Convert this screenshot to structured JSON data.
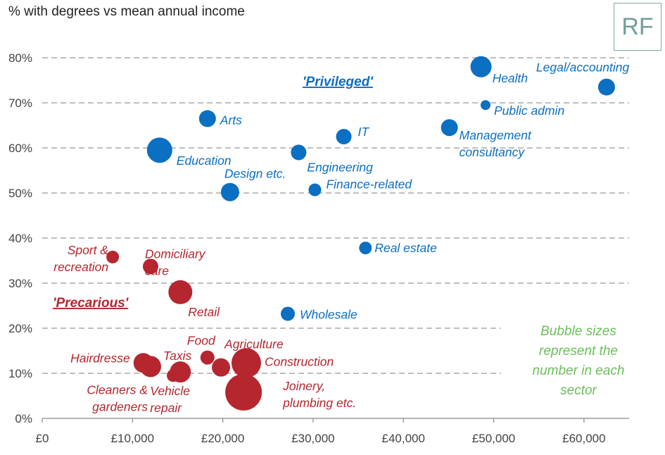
{
  "title": "% with degrees vs mean annual income",
  "logo": "RF",
  "colors": {
    "privileged": "#0b6fc2",
    "precarious": "#b5262f",
    "note": "#6cbf5a",
    "grid": "#aaaaaa"
  },
  "chart_data": {
    "type": "scatter",
    "title": "% with degrees vs mean annual income",
    "xlabel": "",
    "ylabel": "",
    "xlim": [
      0,
      65000
    ],
    "ylim": [
      0,
      80
    ],
    "x_ticks": [
      "£0",
      "£10,000",
      "£20,000",
      "£30,000",
      "£40,000",
      "£50,000",
      "£60,000"
    ],
    "y_ticks": [
      "0%",
      "10%",
      "20%",
      "30%",
      "40%",
      "50%",
      "60%",
      "70%",
      "80%"
    ],
    "grid": "horizontal dashed",
    "groups": [
      {
        "name": "'Privileged'",
        "color": "#0b6fc2"
      },
      {
        "name": "'Precarious'",
        "color": "#b5262f"
      }
    ],
    "note": [
      "Bubble sizes",
      "represent the",
      "number in each",
      "sector"
    ],
    "points": [
      {
        "label": [
          "Legal/accounting"
        ],
        "x": 62500,
        "y": 73.5,
        "r": 12,
        "group": "privileged"
      },
      {
        "label": [
          "Health"
        ],
        "x": 48600,
        "y": 78,
        "r": 15,
        "group": "privileged"
      },
      {
        "label": [
          "Public admin"
        ],
        "x": 49100,
        "y": 69.5,
        "r": 7,
        "group": "privileged"
      },
      {
        "label": [
          "Management",
          "consultancy"
        ],
        "x": 45100,
        "y": 64.5,
        "r": 12,
        "group": "privileged"
      },
      {
        "label": [
          "IT"
        ],
        "x": 33400,
        "y": 62.5,
        "r": 11,
        "group": "privileged"
      },
      {
        "label": [
          "Arts"
        ],
        "x": 18300,
        "y": 66.5,
        "r": 12,
        "group": "privileged"
      },
      {
        "label": [
          "Education"
        ],
        "x": 13000,
        "y": 59.5,
        "r": 18,
        "group": "privileged"
      },
      {
        "label": [
          "Engineering"
        ],
        "x": 28400,
        "y": 59,
        "r": 11,
        "group": "privileged"
      },
      {
        "label": [
          "Design etc."
        ],
        "x": 20800,
        "y": 50.2,
        "r": 13,
        "group": "privileged"
      },
      {
        "label": [
          "Finance-related"
        ],
        "x": 30200,
        "y": 50.7,
        "r": 9,
        "group": "privileged"
      },
      {
        "label": [
          "Real estate"
        ],
        "x": 35800,
        "y": 37.8,
        "r": 9,
        "group": "privileged"
      },
      {
        "label": [
          "Wholesale"
        ],
        "x": 27200,
        "y": 23.2,
        "r": 10,
        "group": "privileged"
      },
      {
        "label": [
          "Sport &",
          "recreation"
        ],
        "x": 7800,
        "y": 35.8,
        "r": 9,
        "group": "precarious"
      },
      {
        "label": [
          "Domiciliary",
          "care"
        ],
        "x": 12000,
        "y": 33.7,
        "r": 11,
        "group": "precarious"
      },
      {
        "label": [
          "Retail"
        ],
        "x": 15300,
        "y": 28,
        "r": 17,
        "group": "precarious"
      },
      {
        "label": [
          "Hairdresse"
        ],
        "x": 11200,
        "y": 12.3,
        "r": 14,
        "group": "precarious"
      },
      {
        "label": [
          "Cleaners &",
          "gardeners"
        ],
        "x": 12000,
        "y": 11.5,
        "r": 15,
        "group": "precarious"
      },
      {
        "label": [
          "Taxis"
        ],
        "x": 14500,
        "y": 9.5,
        "r": 9,
        "group": "precarious"
      },
      {
        "label": [
          "Vehicle",
          "repair"
        ],
        "x": 15300,
        "y": 10.3,
        "r": 15,
        "group": "precarious"
      },
      {
        "label": [
          "Food"
        ],
        "x": 18300,
        "y": 13.5,
        "r": 10,
        "group": "precarious"
      },
      {
        "label": [
          "Agriculture"
        ],
        "x": 19800,
        "y": 11.3,
        "r": 13,
        "group": "precarious"
      },
      {
        "label": [
          "Construction"
        ],
        "x": 22600,
        "y": 12.3,
        "r": 21,
        "group": "precarious"
      },
      {
        "label": [
          "Joinery,",
          "plumbing etc."
        ],
        "x": 22300,
        "y": 5.8,
        "r": 26,
        "group": "precarious"
      }
    ]
  }
}
